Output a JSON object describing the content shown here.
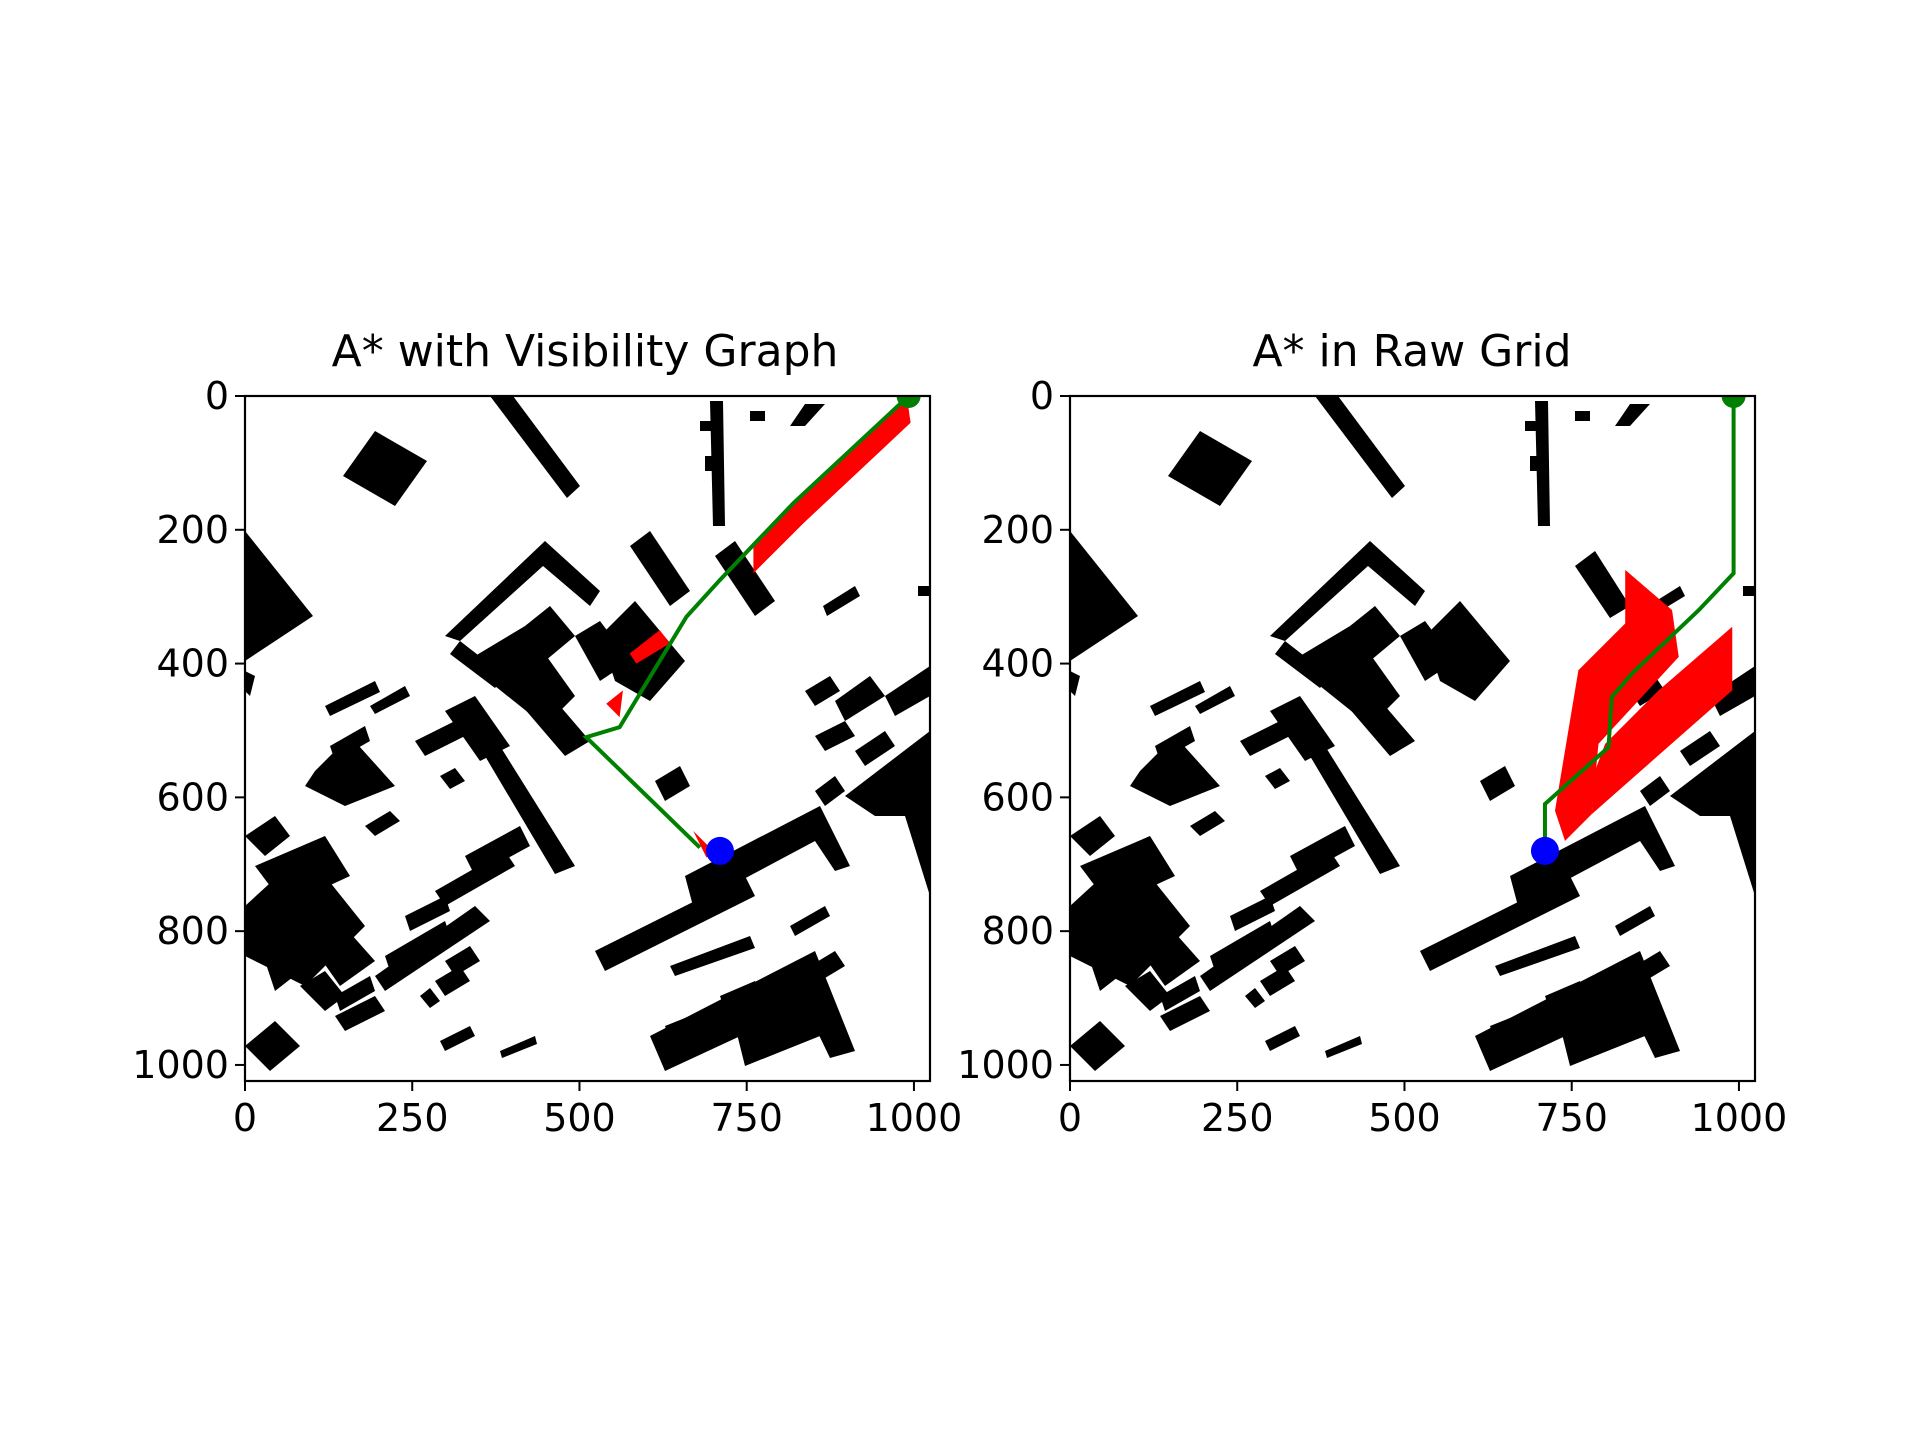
{
  "colors": {
    "obstacle": "#000000",
    "explored": "#ff0000",
    "path": "#008000",
    "start": "#0000ff",
    "goal": "#008000",
    "background": "#ffffff"
  },
  "chart_data": [
    {
      "type": "scatter",
      "title": "A* with Visibility Graph",
      "xlabel": "",
      "ylabel": "",
      "xlim": [
        0,
        1024
      ],
      "ylim": [
        1024,
        0
      ],
      "xticks": [
        0,
        250,
        500,
        750,
        1000
      ],
      "yticks": [
        0,
        200,
        400,
        600,
        800,
        1000
      ],
      "grid": false,
      "start": [
        710,
        680
      ],
      "goal": [
        992,
        0
      ],
      "path": [
        [
          992,
          0
        ],
        [
          820,
          160
        ],
        [
          710,
          275
        ],
        [
          660,
          330
        ],
        [
          560,
          495
        ],
        [
          510,
          510
        ],
        [
          680,
          675
        ]
      ],
      "explored_regions": [
        [
          [
            760,
            225
          ],
          [
            820,
            160
          ],
          [
            990,
            5
          ],
          [
            995,
            40
          ],
          [
            835,
            190
          ],
          [
            760,
            265
          ]
        ],
        [
          [
            575,
            385
          ],
          [
            620,
            350
          ],
          [
            635,
            370
          ],
          [
            585,
            400
          ]
        ],
        [
          [
            540,
            460
          ],
          [
            565,
            440
          ],
          [
            560,
            480
          ]
        ],
        [
          [
            670,
            650
          ],
          [
            700,
            680
          ],
          [
            690,
            690
          ]
        ]
      ]
    },
    {
      "type": "scatter",
      "title": "A* in Raw Grid",
      "xlabel": "",
      "ylabel": "",
      "xlim": [
        0,
        1024
      ],
      "ylim": [
        1024,
        0
      ],
      "xticks": [
        0,
        250,
        500,
        750,
        1000
      ],
      "yticks": [
        0,
        200,
        400,
        600,
        800,
        1000
      ],
      "grid": false,
      "start": [
        710,
        680
      ],
      "goal": [
        992,
        0
      ],
      "path": [
        [
          992,
          0
        ],
        [
          992,
          265
        ],
        [
          940,
          320
        ],
        [
          840,
          415
        ],
        [
          810,
          450
        ],
        [
          805,
          525
        ],
        [
          710,
          610
        ],
        [
          710,
          680
        ]
      ],
      "explored_regions": [
        [
          [
            760,
            410
          ],
          [
            830,
            340
          ],
          [
            830,
            260
          ],
          [
            900,
            320
          ],
          [
            910,
            390
          ],
          [
            790,
            520
          ],
          [
            780,
            625
          ],
          [
            740,
            665
          ],
          [
            725,
            620
          ]
        ],
        [
          [
            780,
            625
          ],
          [
            990,
            440
          ],
          [
            990,
            345
          ],
          [
            880,
            440
          ],
          [
            800,
            520
          ],
          [
            785,
            560
          ]
        ]
      ]
    }
  ]
}
